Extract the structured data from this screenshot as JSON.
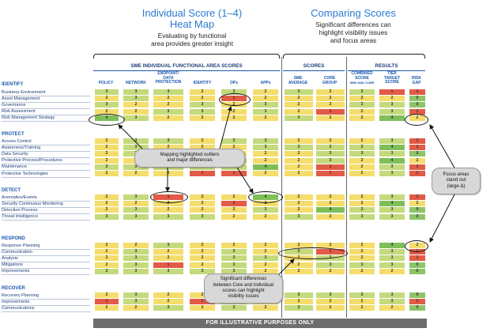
{
  "heatmap_panel": {
    "title_line1": "Individual Score (1–4)",
    "title_line2": "Heat Map",
    "subtitle_line1": "Evaluating by functional",
    "subtitle_line2": "area provides greater insight"
  },
  "comparing_panel": {
    "title": "Comparing Scores",
    "subtitle_line1": "Significant differences can",
    "subtitle_line2": "highlight visibility issues",
    "subtitle_line3": "and focus areas"
  },
  "group_headers": {
    "sme": "SME INDIVIDUAL FUNCTIONAL AREA SCORES",
    "scores": "SCORES",
    "results": "RESULTS"
  },
  "columns": {
    "policy": "POLICY",
    "network": "NETWORK",
    "endpoint_l1": "ENDPOINT/",
    "endpoint_l2": "DATA",
    "endpoint_l3": "PROTECTION",
    "identity": "IDENTITY",
    "ops": "OPs",
    "apps": "APPs",
    "sme_avg_l1": "SME",
    "sme_avg_l2": "AVERAGE",
    "core_l1": "CORE",
    "core_l2": "GROUP",
    "combined_l1": "COMBINED",
    "combined_l2": "SCORE",
    "combined_l3": "SME AND CORE",
    "tier_l1": "TIER",
    "tier_l2": "TARGET",
    "tier_l3": "SCORE",
    "gap_l1": "RISK",
    "gap_l2": "GAP"
  },
  "sections": [
    {
      "title": "IDENTIFY",
      "rows": [
        {
          "label": "Business Environment",
          "v": [
            "3",
            "3",
            "3",
            "2",
            "3",
            "2",
            "3",
            "2",
            "3",
            "1",
            "1"
          ]
        },
        {
          "label": "Asset Management",
          "v": [
            "2",
            "3",
            "2",
            "2",
            "1",
            "2",
            "2",
            "2",
            "2",
            "2",
            "0"
          ]
        },
        {
          "label": "Governance",
          "v": [
            "3",
            "2",
            "2",
            "3",
            "2",
            "3",
            "2",
            "2",
            "3",
            "3",
            "0"
          ]
        },
        {
          "label": "Risk Assessment",
          "v": [
            "2",
            "2",
            "3",
            "3",
            "2",
            "3",
            "2",
            "1",
            "2",
            "3",
            "1"
          ]
        },
        {
          "label": "Risk Management Strategy",
          "v": [
            "4",
            "3",
            "2",
            "2",
            "2",
            "2",
            "3",
            "2",
            "2",
            "4",
            "2"
          ]
        }
      ]
    },
    {
      "title": "PROTECT",
      "rows": [
        {
          "label": "Access Control",
          "v": [
            "2",
            "3",
            "3",
            "2",
            "3",
            "3",
            "2",
            "2",
            "2",
            "3",
            "1"
          ]
        },
        {
          "label": "Awareness/Training",
          "v": [
            "2",
            "3",
            "2",
            "2",
            "2",
            "3",
            "3",
            "3",
            "3",
            "4",
            "1"
          ]
        },
        {
          "label": "Data Security",
          "v": [
            "2",
            "3",
            "3",
            "2",
            "2",
            "2",
            "2",
            "3",
            "3",
            "3",
            "0"
          ]
        },
        {
          "label": "Protective Process/Procedures",
          "v": [
            "2",
            "2",
            "2",
            "3",
            "3",
            "2",
            "2",
            "3",
            "2",
            "4",
            "2"
          ]
        },
        {
          "label": "Maintenance",
          "v": [
            "3",
            "3",
            "3",
            "3",
            "3",
            "4",
            "2",
            "1",
            "2",
            "3",
            "1"
          ]
        },
        {
          "label": "Protective Technologies",
          "v": [
            "2",
            "2",
            "2",
            "1",
            "1",
            "2",
            "2",
            "1",
            "2",
            "3",
            "1"
          ]
        }
      ]
    },
    {
      "title": "DETECT",
      "rows": [
        {
          "label": "Anomalies/Events",
          "v": [
            "2",
            "3",
            "1",
            "2",
            "2",
            "4",
            "2",
            "2",
            "2",
            "3",
            "1"
          ]
        },
        {
          "label": "Security Continuous Monitoring",
          "v": [
            "2",
            "2",
            "2",
            "2",
            "1",
            "2",
            "2",
            "2",
            "2",
            "4",
            "2"
          ]
        },
        {
          "label": "Detection Process",
          "v": [
            "2",
            "3",
            "2",
            "2",
            "2",
            "3",
            "2",
            "4",
            "3",
            "3",
            "0"
          ]
        },
        {
          "label": "Threat Intelligence",
          "v": [
            "3",
            "3",
            "3",
            "3",
            "2",
            "2",
            "3",
            "2",
            "3",
            "3",
            "0"
          ]
        }
      ]
    },
    {
      "title": "RESPOND",
      "rows": [
        {
          "label": "Response Planning",
          "v": [
            "2",
            "2",
            "3",
            "2",
            "2",
            "2",
            "2",
            "2",
            "2",
            "4",
            "2"
          ]
        },
        {
          "label": "Communication",
          "v": [
            "2",
            "3",
            "2",
            "2",
            "3",
            "2",
            "3",
            "1",
            "2",
            "3",
            "1"
          ]
        },
        {
          "label": "Analysis",
          "v": [
            "2",
            "3",
            "2",
            "2",
            "3",
            "3",
            "2",
            "3",
            "2",
            "3",
            "1"
          ]
        },
        {
          "label": "Mitigations",
          "v": [
            "2",
            "3",
            "1",
            "2",
            "3",
            "2",
            "2",
            "3",
            "3",
            "3",
            "0"
          ]
        },
        {
          "label": "Improvements",
          "v": [
            "3",
            "3",
            "3",
            "3",
            "3",
            "2",
            "2",
            "2",
            "2",
            "2",
            "0"
          ]
        }
      ]
    },
    {
      "title": "RECOVER",
      "rows": [
        {
          "label": "Recovery Planning",
          "v": [
            "2",
            "3",
            "2",
            "2",
            "3",
            "2",
            "3",
            "3",
            "3",
            "3",
            "0"
          ]
        },
        {
          "label": "Improvements",
          "v": [
            "1",
            "3",
            "2",
            "1",
            "3",
            "2",
            "2",
            "2",
            "2",
            "3",
            "1"
          ]
        },
        {
          "label": "Communications",
          "v": [
            "2",
            "2",
            "3",
            "2",
            "3",
            "2",
            "3",
            "2",
            "2",
            "2",
            "0"
          ]
        }
      ]
    }
  ],
  "callouts": {
    "outliers_l1": "Mapping highlighted outliers",
    "outliers_l2": "and major differences",
    "focus_l1": "Focus areas",
    "focus_l2": "stand out",
    "focus_l3": "(large Δ)",
    "sig_l1": "Significant differences",
    "sig_l2": "between Core and Individual",
    "sig_l3": "scores can highlight",
    "sig_l4": "visibility issues"
  },
  "footer": "FOR ILLUSTRATIVE PURPOSES ONLY",
  "colors": {
    "score_1": "#e25b46",
    "score_2": "#f4dd6c",
    "score_3": "#c4da7c",
    "score_4": "#7fbf58",
    "gap_0": "#8dc467",
    "heading_blue": "#1a56b0",
    "title_blue": "#2a7bd1"
  }
}
